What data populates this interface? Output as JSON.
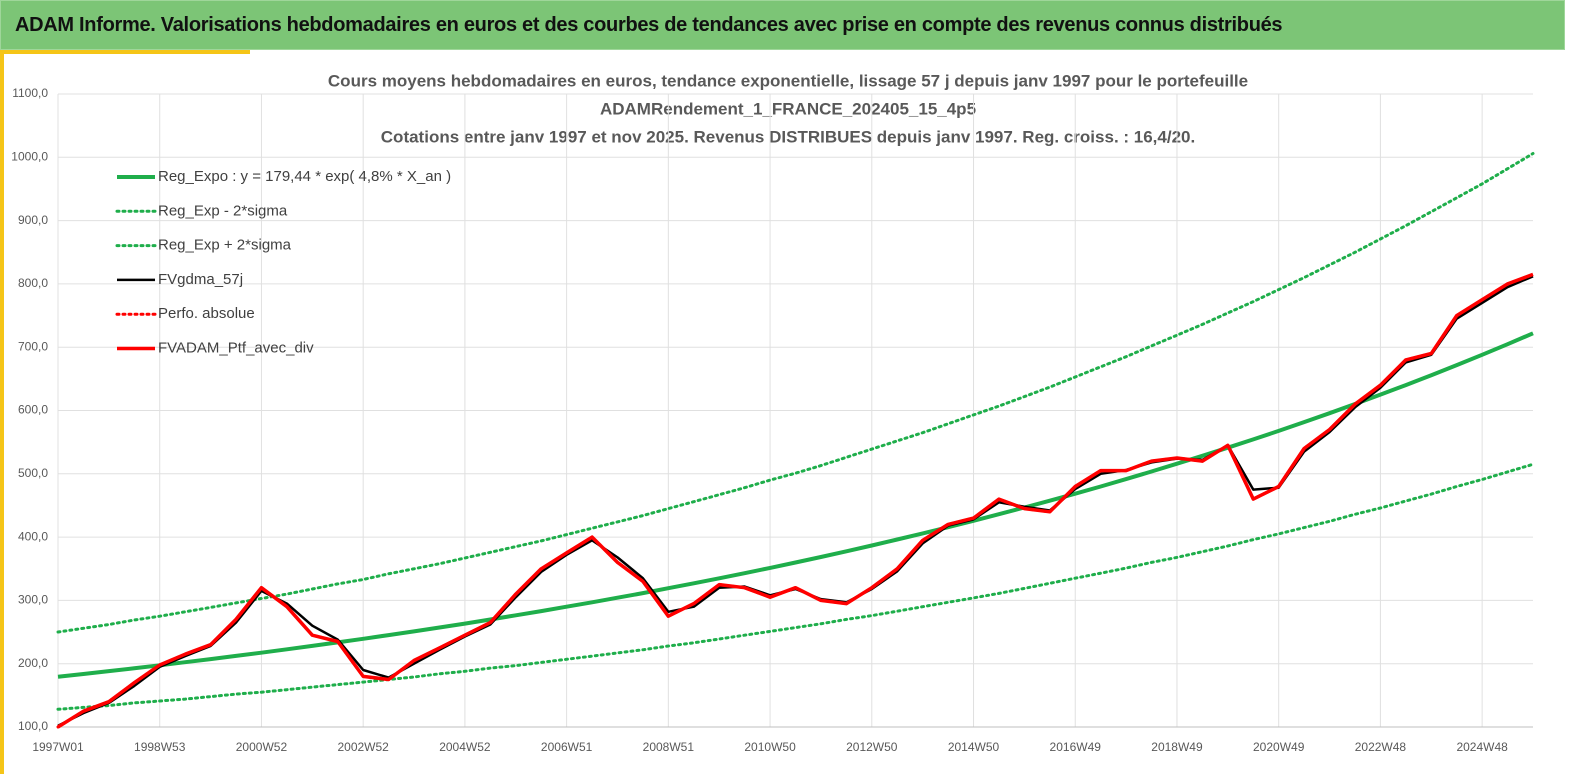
{
  "header": {
    "title": "ADAM Informe. Valorisations hebdomadaires en euros et des courbes de tendances avec prise en compte des revenus connus distribués"
  },
  "chart_data": {
    "type": "line",
    "title": [
      "Cours moyens hebdomadaires  en euros, tendance exponentielle, lissage 57 j depuis janv 1997 pour le portefeuille",
      "ADAMRendement_1_FRANCE_202405_15_4p5",
      "Cotations  entre janv 1997 et nov 2025. Revenus DISTRIBUES depuis janv 1997. Reg. croiss. : 16,4/20."
    ],
    "categories": [
      "1997W01",
      null,
      null,
      null,
      "1998W53",
      null,
      null,
      null,
      "2000W52",
      null,
      null,
      null,
      "2002W52",
      null,
      null,
      null,
      "2004W52",
      null,
      null,
      null,
      "2006W51",
      null,
      null,
      null,
      "2008W51",
      null,
      null,
      null,
      "2010W50",
      null,
      null,
      null,
      "2012W50",
      null,
      null,
      null,
      "2014W50",
      null,
      null,
      null,
      "2016W49",
      null,
      null,
      null,
      "2018W49",
      null,
      null,
      null,
      "2020W49",
      null,
      null,
      null,
      "2022W48",
      null,
      null,
      null,
      "2024W48",
      null,
      null
    ],
    "ylim": [
      100,
      1100
    ],
    "yticks": [
      {
        "value": 100,
        "label": "100,0"
      },
      {
        "value": 200,
        "label": "200,0"
      },
      {
        "value": 300,
        "label": "300,0"
      },
      {
        "value": 400,
        "label": "400,0"
      },
      {
        "value": 500,
        "label": "500,0"
      },
      {
        "value": 600,
        "label": "600,0"
      },
      {
        "value": 700,
        "label": "700,0"
      },
      {
        "value": 800,
        "label": "800,0"
      },
      {
        "value": 900,
        "label": "900,0"
      },
      {
        "value": 1000,
        "label": "1000,0"
      },
      {
        "value": 1100,
        "label": "1100,0"
      }
    ],
    "grid": true,
    "legend": "upper left",
    "series": [
      {
        "name": "Reg_Expo : y = 179,44 * exp( 4,8% *  X_an )",
        "color": "#1fae4b",
        "style": "solid",
        "width": 4,
        "values": [
          179.4,
          183.8,
          188.3,
          192.8,
          197.5,
          202.3,
          207.3,
          212.3,
          217.4,
          222.7,
          228.1,
          233.7,
          239.3,
          245.2,
          251.1,
          257.2,
          263.4,
          269.8,
          276.4,
          283.1,
          290.0,
          297.0,
          304.2,
          311.6,
          319.2,
          327.0,
          334.9,
          343.0,
          351.4,
          359.9,
          368.6,
          377.6,
          386.8,
          396.2,
          405.8,
          415.7,
          425.7,
          436.1,
          446.7,
          457.5,
          468.6,
          480.0,
          491.7,
          503.6,
          515.9,
          528.4,
          541.2,
          554.4,
          567.8,
          581.6,
          595.8,
          610.2,
          625.1,
          640.2,
          655.8,
          671.7,
          688.0,
          704.8,
          721.9
        ]
      },
      {
        "name": "Reg_Exp - 2*sigma",
        "color": "#1fae4b",
        "style": "dotted",
        "width": 3,
        "values": [
          128,
          131,
          134,
          138,
          141,
          144,
          148,
          152,
          155,
          159,
          163,
          167,
          171,
          175,
          179,
          184,
          188,
          193,
          197,
          202,
          207,
          212,
          217,
          222,
          228,
          233,
          239,
          245,
          251,
          257,
          263,
          270,
          276,
          283,
          290,
          297,
          304,
          311,
          319,
          327,
          335,
          343,
          351,
          360,
          368,
          377,
          386,
          396,
          405,
          415,
          425,
          436,
          446,
          457,
          468,
          480,
          491,
          503,
          515
        ]
      },
      {
        "name": "Reg_Exp + 2*sigma",
        "color": "#1fae4b",
        "style": "dotted",
        "width": 3,
        "values": [
          250,
          256,
          262,
          269,
          275,
          282,
          289,
          296,
          303,
          310,
          318,
          326,
          333,
          342,
          350,
          358,
          367,
          376,
          385,
          394,
          404,
          414,
          424,
          434,
          445,
          456,
          467,
          478,
          490,
          501,
          513,
          526,
          539,
          552,
          565,
          579,
          593,
          607,
          622,
          637,
          653,
          669,
          685,
          702,
          719,
          736,
          754,
          772,
          791,
          810,
          830,
          850,
          871,
          892,
          914,
          936,
          958,
          982,
          1006
        ]
      },
      {
        "name": "FVgdma_57j",
        "color": "#000000",
        "style": "solid",
        "width": 2.5,
        "values": [
          102,
          122,
          138,
          165,
          195,
          212,
          228,
          265,
          315,
          295,
          260,
          238,
          190,
          178,
          200,
          222,
          243,
          262,
          305,
          345,
          372,
          395,
          368,
          335,
          282,
          290,
          320,
          322,
          308,
          318,
          302,
          297,
          318,
          346,
          390,
          418,
          428,
          455,
          448,
          442,
          476,
          500,
          506,
          518,
          524,
          522,
          545,
          475,
          478,
          535,
          566,
          605,
          636,
          676,
          688,
          745,
          770,
          795,
          812
        ]
      },
      {
        "name": "Perfo. absolue",
        "color": "#ff0000",
        "style": "dotted",
        "width": 3,
        "values": [
          100,
          125,
          140,
          170,
          198,
          215,
          230,
          270,
          320,
          290,
          245,
          235,
          180,
          175,
          205,
          225,
          245,
          265,
          310,
          350,
          375,
          400,
          360,
          330,
          275,
          295,
          325,
          320,
          305,
          320,
          300,
          295,
          320,
          350,
          395,
          420,
          430,
          460,
          445,
          440,
          480,
          505,
          505,
          520,
          525,
          520,
          545,
          460,
          480,
          540,
          570,
          610,
          640,
          680,
          690,
          750,
          775,
          800,
          815
        ]
      },
      {
        "name": "FVADAM_Ptf_avec_div",
        "color": "#ff0000",
        "style": "solid",
        "width": 3.5,
        "values": [
          100,
          125,
          140,
          170,
          198,
          215,
          230,
          270,
          320,
          290,
          245,
          235,
          180,
          175,
          205,
          225,
          245,
          265,
          310,
          350,
          375,
          400,
          360,
          330,
          275,
          295,
          325,
          320,
          305,
          320,
          300,
          295,
          320,
          350,
          395,
          420,
          430,
          460,
          445,
          440,
          480,
          505,
          505,
          520,
          525,
          520,
          545,
          460,
          480,
          540,
          570,
          610,
          640,
          680,
          690,
          750,
          775,
          800,
          815
        ]
      }
    ]
  }
}
